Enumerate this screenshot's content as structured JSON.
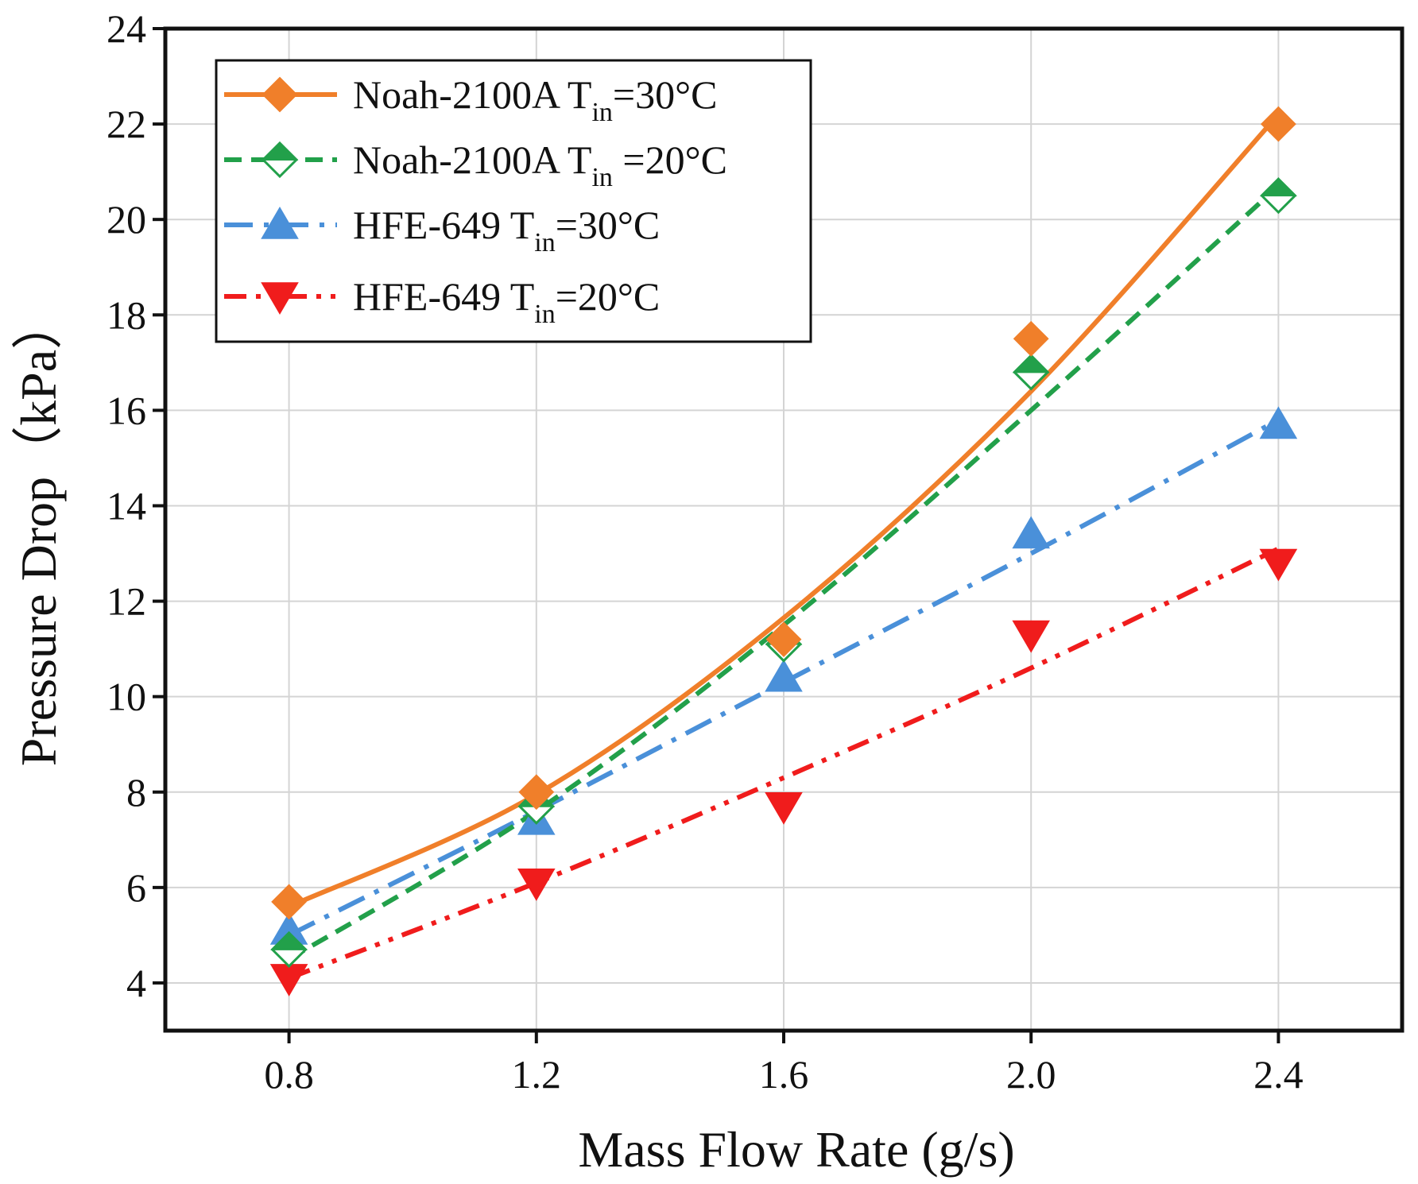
{
  "chart_data": {
    "type": "scatter",
    "xlabel": "Mass Flow Rate (g/s)",
    "ylabel": "Pressure Drop（kPa）",
    "xlim": [
      0.6,
      2.6
    ],
    "ylim": [
      3,
      24
    ],
    "x_ticks": [
      "0.8",
      "1.2",
      "1.6",
      "2.0",
      "2.4"
    ],
    "x_tick_values": [
      0.8,
      1.2,
      1.6,
      2.0,
      2.4
    ],
    "y_ticks": [
      "4",
      "6",
      "8",
      "10",
      "12",
      "14",
      "16",
      "18",
      "20",
      "22",
      "24"
    ],
    "y_tick_values": [
      4,
      6,
      8,
      10,
      12,
      14,
      16,
      18,
      20,
      22,
      24
    ],
    "grid": true,
    "legend_position": "top-left",
    "series": [
      {
        "id": "noah30",
        "label_main": "Noah-2100A  T",
        "label_sub": "in",
        "label_tail": "=30°C",
        "color": "#F07F2A",
        "marker": "diamond-filled",
        "line_style": "solid",
        "x": [
          0.8,
          1.2,
          1.6,
          2.0,
          2.4
        ],
        "y": [
          5.7,
          8.0,
          11.2,
          17.5,
          22.0
        ],
        "fit": [
          5.6,
          7.95,
          11.65,
          16.4,
          22.2
        ]
      },
      {
        "id": "noah20",
        "label_main": "Noah-2100A  T",
        "label_sub": "in",
        "label_tail": " =20°C",
        "color": "#22A04A",
        "marker": "diamond-half",
        "line_style": "dash",
        "x": [
          0.8,
          1.2,
          1.6,
          2.0,
          2.4
        ],
        "y": [
          4.7,
          7.7,
          11.1,
          16.8,
          20.5
        ],
        "fit": [
          4.5,
          7.6,
          11.5,
          16.0,
          20.7
        ]
      },
      {
        "id": "hfe30",
        "label_main": "HFE-649 T",
        "label_sub": "in",
        "label_tail": "=30°C",
        "color": "#4A90D9",
        "marker": "triangle-up",
        "line_style": "dashdot",
        "x": [
          0.8,
          1.2,
          1.6,
          2.0,
          2.4
        ],
        "y": [
          5.1,
          7.4,
          10.4,
          13.4,
          15.7
        ],
        "fit": [
          5.0,
          7.6,
          10.3,
          13.0,
          15.8
        ]
      },
      {
        "id": "hfe20",
        "label_main": "HFE-649 T",
        "label_sub": "in",
        "label_tail": "=20°C",
        "color": "#F01C1C",
        "marker": "triangle-down",
        "line_style": "dashdotdot",
        "x": [
          0.8,
          1.2,
          1.6,
          2.0,
          2.4
        ],
        "y": [
          4.1,
          6.1,
          7.7,
          11.3,
          12.8
        ],
        "fit": [
          4.1,
          6.1,
          8.3,
          10.6,
          13.1
        ]
      }
    ]
  }
}
